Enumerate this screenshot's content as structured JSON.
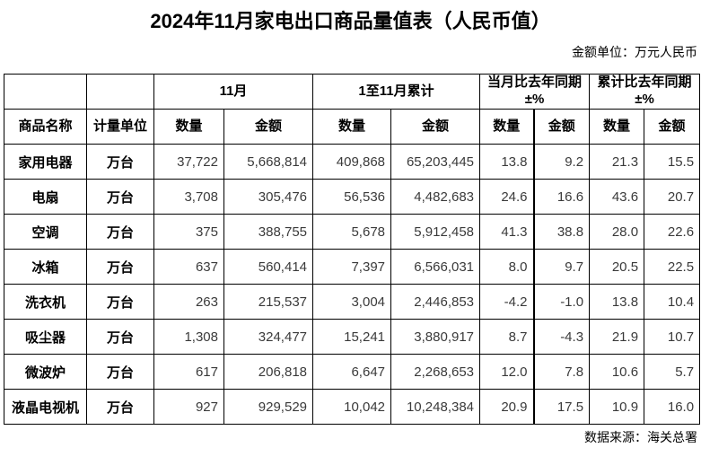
{
  "title": "2024年11月家电出口商品量值表（人民币值）",
  "unit_note": "金额单位：万元人民币",
  "source_note": "数据来源：海关总署",
  "colors": {
    "background": "#ffffff",
    "border": "#000000",
    "heading_text": "#000000",
    "number_text": "#3a3a3a"
  },
  "table": {
    "groups": [
      {
        "label": "11月"
      },
      {
        "label": "1至11月累计"
      },
      {
        "label": "当月比去年同期±%"
      },
      {
        "label": "累计比去年同期±%"
      }
    ],
    "col_headers": [
      "商品名称",
      "计量单位",
      "数量",
      "金额",
      "数量",
      "金额",
      "数量",
      "金额",
      "数量",
      "金额"
    ],
    "rows": [
      {
        "cells": [
          "家用电器",
          "万台",
          "37,722",
          "5,668,814",
          "409,868",
          "65,203,445",
          "13.8",
          "9.2",
          "21.3",
          "15.5"
        ]
      },
      {
        "cells": [
          "电扇",
          "万台",
          "3,708",
          "305,476",
          "56,536",
          "4,482,683",
          "24.6",
          "16.6",
          "43.6",
          "20.7"
        ]
      },
      {
        "cells": [
          "空调",
          "万台",
          "375",
          "388,755",
          "5,678",
          "5,912,458",
          "41.3",
          "38.8",
          "28.0",
          "22.6"
        ]
      },
      {
        "cells": [
          "冰箱",
          "万台",
          "637",
          "560,414",
          "7,397",
          "6,566,031",
          "8.0",
          "9.7",
          "20.5",
          "22.5"
        ]
      },
      {
        "cells": [
          "洗衣机",
          "万台",
          "263",
          "215,537",
          "3,004",
          "2,446,853",
          "-4.2",
          "-1.0",
          "13.8",
          "10.4"
        ]
      },
      {
        "cells": [
          "吸尘器",
          "万台",
          "1,308",
          "324,477",
          "15,241",
          "3,880,917",
          "8.7",
          "-4.3",
          "21.9",
          "10.7"
        ]
      },
      {
        "cells": [
          "微波炉",
          "万台",
          "617",
          "206,818",
          "6,647",
          "2,268,653",
          "12.0",
          "7.8",
          "10.6",
          "5.7"
        ]
      },
      {
        "cells": [
          "液晶电视机",
          "万台",
          "927",
          "929,529",
          "10,042",
          "10,248,384",
          "20.9",
          "17.5",
          "10.9",
          "16.0"
        ]
      }
    ]
  }
}
